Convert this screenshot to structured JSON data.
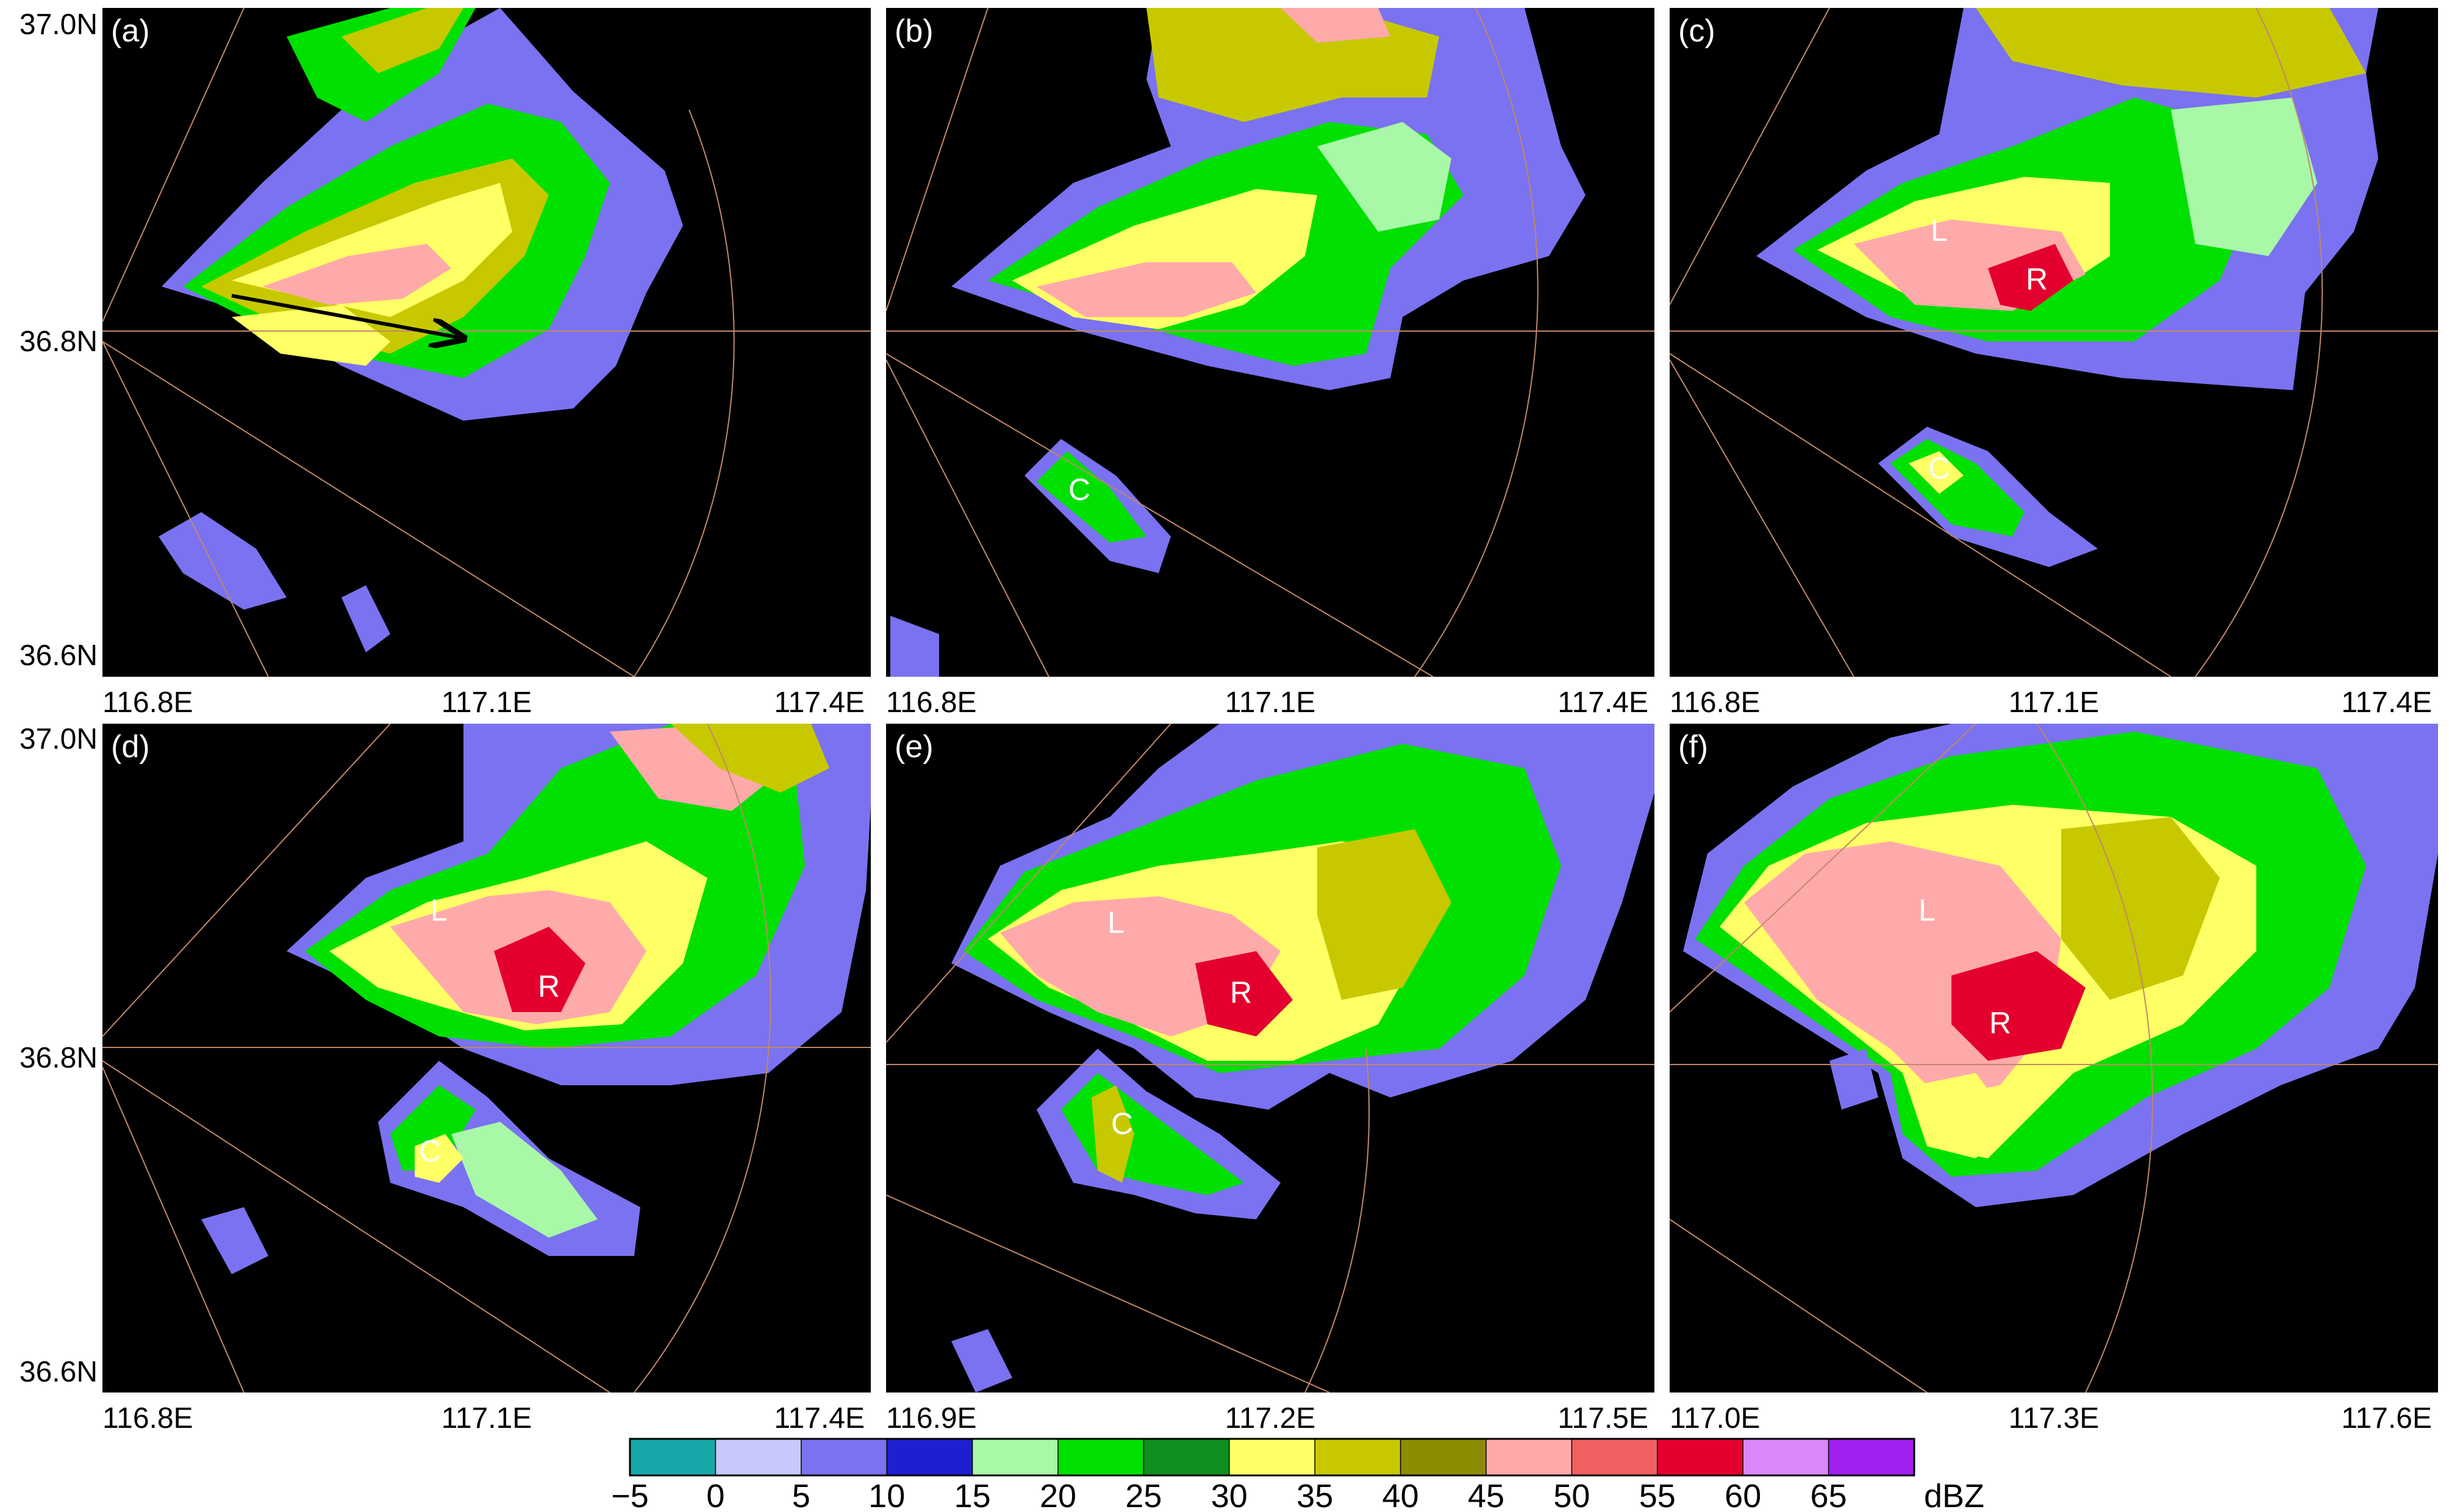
{
  "rows": [
    {
      "lat_labels": [
        "37.0N",
        "36.8N",
        "36.6N"
      ],
      "panels": [
        {
          "label": "(a)",
          "lon_labels": [
            "116.8E",
            "117.1E",
            "117.4E"
          ],
          "markers": []
        },
        {
          "label": "(b)",
          "lon_labels": [
            "116.8E",
            "117.1E",
            "117.4E"
          ],
          "markers": [
            "C"
          ]
        },
        {
          "label": "(c)",
          "lon_labels": [
            "116.8E",
            "117.1E",
            "117.4E"
          ],
          "markers": [
            "L",
            "R",
            "C"
          ]
        }
      ]
    },
    {
      "lat_labels": [
        "37.0N",
        "36.8N",
        "36.6N"
      ],
      "panels": [
        {
          "label": "(d)",
          "lon_labels": [
            "116.8E",
            "117.1E",
            "117.4E"
          ],
          "markers": [
            "L",
            "R",
            "C"
          ]
        },
        {
          "label": "(e)",
          "lon_labels": [
            "116.9E",
            "117.2E",
            "117.5E"
          ],
          "markers": [
            "L",
            "R",
            "C"
          ]
        },
        {
          "label": "(f)",
          "lon_labels": [
            "117.0E",
            "117.3E",
            "117.6E"
          ],
          "markers": [
            "L",
            "R"
          ]
        }
      ]
    }
  ],
  "colorbar": {
    "unit": "dBZ",
    "ticks": [
      "−5",
      "0",
      "5",
      "10",
      "15",
      "20",
      "25",
      "30",
      "35",
      "40",
      "45",
      "50",
      "55",
      "60",
      "65"
    ],
    "colors": [
      "#16a8a8",
      "#c8c8fa",
      "#7a72f0",
      "#1e1ed2",
      "#a8f8a8",
      "#00e000",
      "#0f8f1f",
      "#ffff66",
      "#c8c800",
      "#8c8c00",
      "#ffaaaa",
      "#f06060",
      "#e4002e",
      "#d888f8",
      "#a020f0"
    ]
  }
}
